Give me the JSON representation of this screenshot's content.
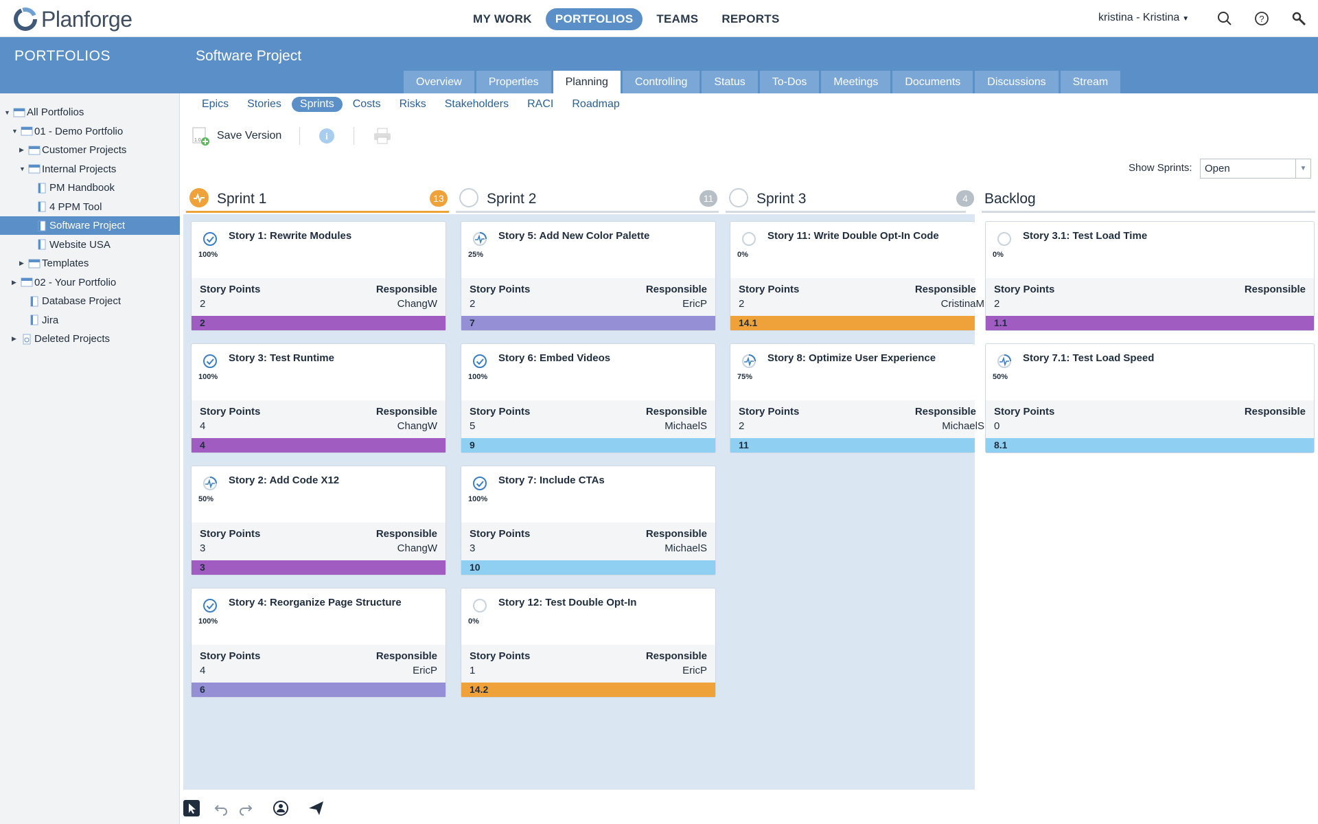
{
  "app": {
    "logo_text": "Planforge"
  },
  "nav": [
    {
      "label": "MY WORK",
      "active": false
    },
    {
      "label": "PORTFOLIOS",
      "active": true
    },
    {
      "label": "TEAMS",
      "active": false
    },
    {
      "label": "REPORTS",
      "active": false
    }
  ],
  "user": {
    "label": "kristina - Kristina"
  },
  "sidebar": {
    "header": "PORTFOLIOS",
    "tree": [
      {
        "label": "All Portfolios",
        "level": 0,
        "arrow": "down",
        "icon": "portfolio-folder-icon"
      },
      {
        "label": "01 - Demo Portfolio",
        "level": 1,
        "arrow": "down",
        "icon": "portfolio-folder-icon"
      },
      {
        "label": "Customer Projects",
        "level": 2,
        "arrow": "right",
        "icon": "portfolio-folder-icon"
      },
      {
        "label": "Internal Projects",
        "level": 2,
        "arrow": "down",
        "icon": "portfolio-folder-icon"
      },
      {
        "label": "PM Handbook",
        "level": 3,
        "arrow": "",
        "icon": "project-doc-icon"
      },
      {
        "label": "4 PPM Tool",
        "level": 3,
        "arrow": "",
        "icon": "project-doc-icon"
      },
      {
        "label": "Software Project",
        "level": 3,
        "arrow": "",
        "icon": "project-doc-icon",
        "selected": true
      },
      {
        "label": "Website USA",
        "level": 3,
        "arrow": "",
        "icon": "project-doc-icon"
      },
      {
        "label": "Templates",
        "level": 2,
        "arrow": "right",
        "icon": "portfolio-folder-icon"
      },
      {
        "label": "02 - Your Portfolio",
        "level": 1,
        "arrow": "right",
        "icon": "portfolio-folder-icon"
      },
      {
        "label": "Database Project",
        "level": 2,
        "arrow": "",
        "icon": "project-doc-icon"
      },
      {
        "label": "Jira",
        "level": 2,
        "arrow": "",
        "icon": "project-doc-icon"
      },
      {
        "label": "Deleted Projects",
        "level": 1,
        "arrow": "right",
        "icon": "trash-doc-icon"
      }
    ]
  },
  "project": {
    "title": "Software Project"
  },
  "tabs": [
    {
      "label": "Overview"
    },
    {
      "label": "Properties"
    },
    {
      "label": "Planning",
      "active": true
    },
    {
      "label": "Controlling"
    },
    {
      "label": "Status"
    },
    {
      "label": "To-Dos"
    },
    {
      "label": "Meetings"
    },
    {
      "label": "Documents"
    },
    {
      "label": "Discussions"
    },
    {
      "label": "Stream"
    }
  ],
  "subtabs": [
    {
      "label": "Epics"
    },
    {
      "label": "Stories"
    },
    {
      "label": "Sprints",
      "active": true
    },
    {
      "label": "Costs"
    },
    {
      "label": "Risks"
    },
    {
      "label": "Stakeholders"
    },
    {
      "label": "RACI"
    },
    {
      "label": "Roadmap"
    }
  ],
  "toolbar": {
    "save_version": "Save Version"
  },
  "filter": {
    "label": "Show Sprints:",
    "value": "Open"
  },
  "labels": {
    "story_points": "Story Points",
    "responsible": "Responsible"
  },
  "colors": {
    "accent": "#5a8fc8",
    "orange": "#f0a23a",
    "purple": "#a05cc0",
    "lavender": "#9590d6",
    "lightblue": "#8fd0f2"
  },
  "columns": [
    {
      "title": "Sprint 1",
      "count": "13",
      "active": true,
      "cards": [
        {
          "title": "Story 1: Rewrite Modules",
          "progress": "100%",
          "status": "done",
          "points": "2",
          "responsible": "ChangW",
          "epic": "2",
          "color": "purple"
        },
        {
          "title": "Story 3: Test Runtime",
          "progress": "100%",
          "status": "done",
          "points": "4",
          "responsible": "ChangW",
          "epic": "4",
          "color": "purple"
        },
        {
          "title": "Story 2: Add Code X12",
          "progress": "50%",
          "status": "progress",
          "points": "3",
          "responsible": "ChangW",
          "epic": "3",
          "color": "purple"
        },
        {
          "title": "Story 4: Reorganize Page Structure",
          "progress": "100%",
          "status": "done",
          "points": "4",
          "responsible": "EricP",
          "epic": "6",
          "color": "lavender"
        }
      ]
    },
    {
      "title": "Sprint 2",
      "count": "11",
      "active": false,
      "cards": [
        {
          "title": "Story 5: Add New Color Palette",
          "progress": "25%",
          "status": "progress",
          "points": "2",
          "responsible": "EricP",
          "epic": "7",
          "color": "lavender"
        },
        {
          "title": "Story 6: Embed Videos",
          "progress": "100%",
          "status": "done",
          "points": "5",
          "responsible": "MichaelS",
          "epic": "9",
          "color": "lightblue"
        },
        {
          "title": "Story 7: Include CTAs",
          "progress": "100%",
          "status": "done",
          "points": "3",
          "responsible": "MichaelS",
          "epic": "10",
          "color": "lightblue"
        },
        {
          "title": "Story 12: Test Double Opt-In",
          "progress": "0%",
          "status": "open",
          "points": "1",
          "responsible": "EricP",
          "epic": "14.2",
          "color": "orange"
        }
      ]
    },
    {
      "title": "Sprint 3",
      "count": "4",
      "active": false,
      "cards": [
        {
          "title": "Story 11: Write Double Opt-In Code",
          "progress": "0%",
          "status": "open",
          "points": "2",
          "responsible": "CristinaM",
          "epic": "14.1",
          "color": "orange"
        },
        {
          "title": "Story 8: Optimize User Experience",
          "progress": "75%",
          "status": "progress",
          "points": "2",
          "responsible": "MichaelS",
          "epic": "11",
          "color": "lightblue"
        }
      ]
    },
    {
      "title": "Backlog",
      "count": "",
      "active": false,
      "cards": [
        {
          "title": "Story 3.1: Test Load Time",
          "progress": "0%",
          "status": "open",
          "points": "2",
          "responsible": "",
          "epic": "1.1",
          "color": "purple"
        },
        {
          "title": "Story 7.1: Test Load Speed",
          "progress": "50%",
          "status": "progress",
          "points": "0",
          "responsible": "",
          "epic": "8.1",
          "color": "lightblue"
        }
      ]
    }
  ]
}
